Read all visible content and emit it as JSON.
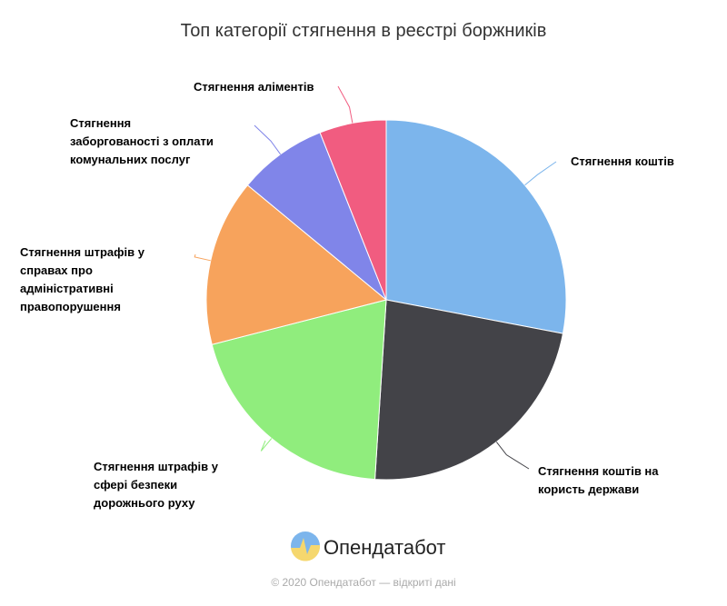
{
  "chart_data": {
    "type": "pie",
    "title": "Топ категорії стягнення в реєстрі боржників",
    "categories": [
      "Стягнення коштів",
      "Стягнення коштів на користь держави",
      "Стягнення штрафів у сфері безпеки дорожнього руху",
      "Стягнення штрафів у справах про адміністративні правопорушення",
      "Стягнення заборгованості з оплати комунальних послуг",
      "Стягнення аліментів"
    ],
    "values": [
      28,
      23,
      20,
      15,
      8,
      6
    ],
    "colors": [
      "#7cb5ec",
      "#434348",
      "#90ed7d",
      "#f7a35c",
      "#8085e9",
      "#f15c80"
    ]
  },
  "logo": "Опендатабот",
  "credit": "© 2020 Опендатабот — відкриті дані"
}
